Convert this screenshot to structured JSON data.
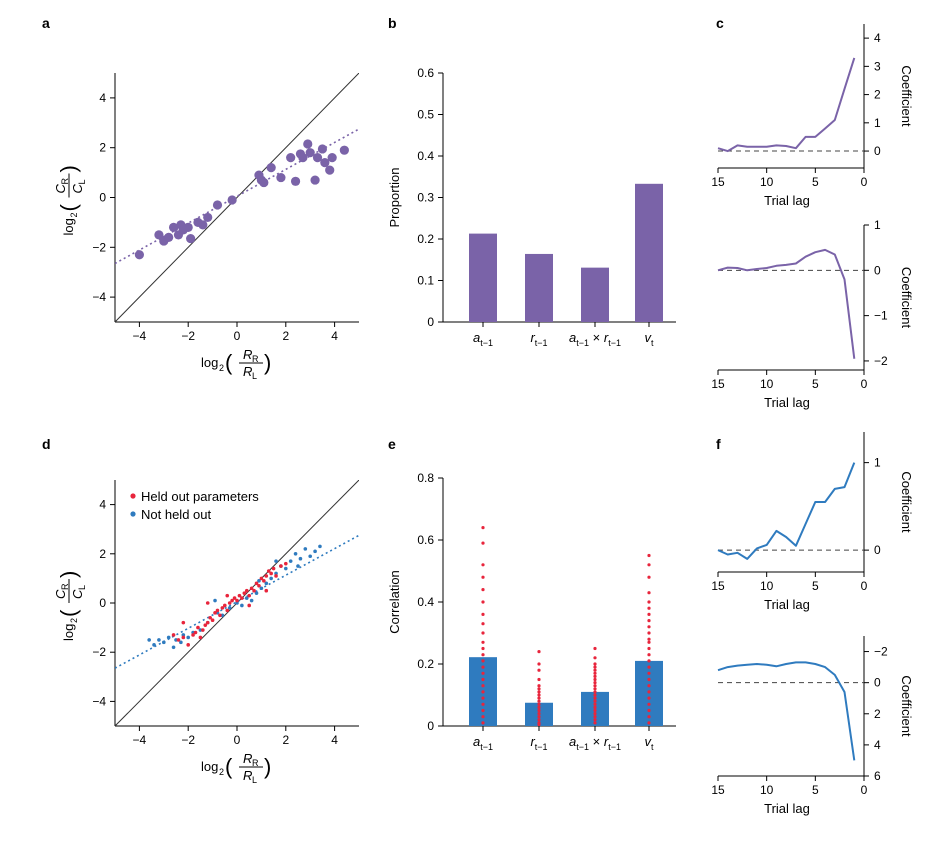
{
  "colors": {
    "purple": "#7a63a8",
    "blue": "#2f7bbf",
    "red": "#e8253c",
    "black": "#000000"
  },
  "panels": {
    "a": {
      "label": "a"
    },
    "b": {
      "label": "b"
    },
    "c": {
      "label": "c"
    },
    "d": {
      "label": "d"
    },
    "e": {
      "label": "e"
    },
    "f": {
      "label": "f"
    }
  },
  "chart_data": [
    {
      "id": "a",
      "type": "scatter",
      "xlabel": "log2(RR/RL)",
      "ylabel": "log2(CR/CL)",
      "xlabel_parts": {
        "pre": "log",
        "sub": "2",
        "num": "R",
        "num_sub": "R",
        "den": "R",
        "den_sub": "L"
      },
      "ylabel_parts": {
        "pre": "log",
        "sub": "2",
        "num": "C",
        "num_sub": "R",
        "den": "C",
        "den_sub": "L"
      },
      "xlim": [
        -5,
        5
      ],
      "ylim": [
        -5,
        5
      ],
      "xticks": [
        -4,
        -2,
        0,
        2,
        4
      ],
      "yticks": [
        -4,
        -2,
        0,
        2,
        4
      ],
      "xtick_labels": [
        "−4",
        "−2",
        "0",
        "2",
        "4"
      ],
      "ytick_labels": [
        "−4",
        "−2",
        "0",
        "2",
        "4"
      ],
      "identity_line": true,
      "fit_line": {
        "slope": 0.54,
        "intercept": 0.05,
        "style": "dotted"
      },
      "points": [
        [
          -4.0,
          -2.3
        ],
        [
          -3.2,
          -1.5
        ],
        [
          -3.0,
          -1.75
        ],
        [
          -2.8,
          -1.6
        ],
        [
          -2.6,
          -1.2
        ],
        [
          -2.4,
          -1.5
        ],
        [
          -2.3,
          -1.1
        ],
        [
          -2.2,
          -1.3
        ],
        [
          -2.0,
          -1.2
        ],
        [
          -1.9,
          -1.65
        ],
        [
          -1.6,
          -1.0
        ],
        [
          -1.4,
          -1.1
        ],
        [
          -1.2,
          -0.8
        ],
        [
          -0.8,
          -0.3
        ],
        [
          -0.2,
          -0.1
        ],
        [
          0.9,
          0.9
        ],
        [
          1.0,
          0.7
        ],
        [
          1.1,
          0.6
        ],
        [
          1.4,
          1.2
        ],
        [
          1.8,
          0.8
        ],
        [
          2.2,
          1.6
        ],
        [
          2.4,
          0.65
        ],
        [
          2.6,
          1.75
        ],
        [
          2.7,
          1.6
        ],
        [
          2.9,
          2.15
        ],
        [
          3.0,
          1.8
        ],
        [
          3.2,
          0.7
        ],
        [
          3.3,
          1.6
        ],
        [
          3.5,
          1.95
        ],
        [
          3.6,
          1.4
        ],
        [
          3.8,
          1.1
        ],
        [
          3.9,
          1.6
        ],
        [
          4.4,
          1.9
        ]
      ]
    },
    {
      "id": "b",
      "type": "bar",
      "ylabel": "Proportion",
      "categories": [
        {
          "base": "a",
          "sub": "t−1"
        },
        {
          "base": "r",
          "sub": "t−1"
        },
        {
          "base": "a",
          "sub": "t−1",
          "mid": " × ",
          "base2": "r",
          "sub2": "t−1"
        },
        {
          "base": "v",
          "sub": "t"
        }
      ],
      "values": [
        0.213,
        0.164,
        0.131,
        0.333
      ],
      "ylim": [
        0,
        0.6
      ],
      "yticks": [
        0,
        0.1,
        0.2,
        0.3,
        0.4,
        0.5,
        0.6
      ],
      "ytick_labels": [
        "0",
        "0.1",
        "0.2",
        "0.3",
        "0.4",
        "0.5",
        "0.6"
      ]
    },
    {
      "id": "c1",
      "type": "line",
      "xlabel": "Trial lag",
      "ylabel": "Coefficient",
      "x": [
        15,
        14,
        13,
        12,
        11,
        10,
        9,
        8,
        7,
        6,
        5,
        4,
        3,
        2,
        1
      ],
      "y": [
        0.1,
        0.0,
        0.2,
        0.15,
        0.15,
        0.15,
        0.2,
        0.18,
        0.1,
        0.5,
        0.5,
        0.8,
        1.1,
        2.2,
        3.3
      ],
      "xlim": [
        15,
        0
      ],
      "ylim": [
        -0.6,
        4.5
      ],
      "xticks": [
        15,
        10,
        5,
        0
      ],
      "yticks": [
        0,
        1,
        2,
        3,
        4
      ],
      "xtick_labels": [
        "15",
        "10",
        "5",
        "0"
      ],
      "ytick_labels": [
        "0",
        "1",
        "2",
        "3",
        "4"
      ],
      "zero_line": true
    },
    {
      "id": "c2",
      "type": "line",
      "xlabel": "Trial lag",
      "ylabel": "Coefficient",
      "x": [
        15,
        14,
        13,
        12,
        11,
        10,
        9,
        8,
        7,
        6,
        5,
        4,
        3,
        2,
        1
      ],
      "y": [
        0.0,
        0.06,
        0.05,
        0.0,
        0.03,
        0.05,
        0.1,
        0.12,
        0.15,
        0.3,
        0.4,
        0.45,
        0.35,
        -0.2,
        -1.95
      ],
      "xlim": [
        15,
        0
      ],
      "ylim": [
        -2.2,
        1.0
      ],
      "xticks": [
        15,
        10,
        5,
        0
      ],
      "yticks": [
        1,
        0,
        -1,
        -2
      ],
      "xtick_labels": [
        "15",
        "10",
        "5",
        "0"
      ],
      "ytick_labels": [
        "1",
        "0",
        "−1",
        "−2"
      ],
      "zero_line": true
    },
    {
      "id": "d",
      "type": "scatter",
      "xlabel": "log2(RR/RL)",
      "ylabel": "log2(CR/CL)",
      "xlabel_parts": {
        "pre": "log",
        "sub": "2",
        "num": "R",
        "num_sub": "R",
        "den": "R",
        "den_sub": "L"
      },
      "ylabel_parts": {
        "pre": "log",
        "sub": "2",
        "num": "C",
        "num_sub": "R",
        "den": "C",
        "den_sub": "L"
      },
      "xlim": [
        -5,
        5
      ],
      "ylim": [
        -5,
        5
      ],
      "xticks": [
        -4,
        -2,
        0,
        2,
        4
      ],
      "yticks": [
        -4,
        -2,
        0,
        2,
        4
      ],
      "xtick_labels": [
        "−4",
        "−2",
        "0",
        "2",
        "4"
      ],
      "ytick_labels": [
        "−4",
        "−2",
        "0",
        "2",
        "4"
      ],
      "identity_line": true,
      "fit_line": {
        "slope": 0.54,
        "intercept": 0.05,
        "style": "dotted"
      },
      "legend": [
        "Held out parameters",
        "Not held out"
      ],
      "series": [
        {
          "name": "Held out parameters",
          "color": "red",
          "points": [
            [
              -2.6,
              -1.3
            ],
            [
              -2.4,
              -1.5
            ],
            [
              -2.2,
              -1.4
            ],
            [
              -2.0,
              -1.7
            ],
            [
              -1.8,
              -1.3
            ],
            [
              -1.7,
              -1.2
            ],
            [
              -1.6,
              -1.0
            ],
            [
              -1.5,
              -1.4
            ],
            [
              -1.4,
              -1.1
            ],
            [
              -1.3,
              -0.9
            ],
            [
              -1.2,
              -0.8
            ],
            [
              -1.1,
              -0.6
            ],
            [
              -1.0,
              -0.7
            ],
            [
              -0.9,
              -0.4
            ],
            [
              -0.8,
              -0.3
            ],
            [
              -0.7,
              -0.5
            ],
            [
              -0.6,
              -0.2
            ],
            [
              -0.5,
              -0.1
            ],
            [
              -0.4,
              -0.3
            ],
            [
              -0.3,
              0.0
            ],
            [
              -0.2,
              0.1
            ],
            [
              -0.1,
              0.2
            ],
            [
              0.0,
              0.1
            ],
            [
              0.1,
              0.3
            ],
            [
              0.2,
              0.2
            ],
            [
              0.3,
              0.4
            ],
            [
              0.4,
              0.5
            ],
            [
              0.5,
              0.3
            ],
            [
              0.6,
              0.6
            ],
            [
              0.7,
              0.5
            ],
            [
              0.8,
              0.8
            ],
            [
              0.9,
              0.7
            ],
            [
              1.0,
              1.0
            ],
            [
              1.1,
              0.9
            ],
            [
              1.2,
              1.1
            ],
            [
              1.3,
              1.3
            ],
            [
              1.4,
              1.2
            ],
            [
              1.5,
              1.4
            ],
            [
              1.6,
              1.1
            ],
            [
              1.8,
              1.5
            ],
            [
              -1.2,
              0.0
            ],
            [
              -0.4,
              0.3
            ],
            [
              0.5,
              -0.1
            ],
            [
              1.2,
              0.5
            ],
            [
              -2.2,
              -0.8
            ],
            [
              2.0,
              1.6
            ]
          ]
        },
        {
          "name": "Not held out",
          "color": "blue",
          "points": [
            [
              -3.6,
              -1.5
            ],
            [
              -3.4,
              -1.7
            ],
            [
              -3.2,
              -1.5
            ],
            [
              -3.0,
              -1.6
            ],
            [
              -2.8,
              -1.4
            ],
            [
              -2.6,
              -1.8
            ],
            [
              -2.5,
              -1.5
            ],
            [
              -2.3,
              -1.6
            ],
            [
              -2.2,
              -1.3
            ],
            [
              -2.0,
              -1.4
            ],
            [
              -1.8,
              -1.2
            ],
            [
              -1.5,
              -1.1
            ],
            [
              -1.2,
              -0.8
            ],
            [
              -0.8,
              -0.4
            ],
            [
              -0.6,
              -0.5
            ],
            [
              -0.3,
              -0.2
            ],
            [
              0.0,
              0.0
            ],
            [
              0.2,
              -0.1
            ],
            [
              0.4,
              0.2
            ],
            [
              0.6,
              0.1
            ],
            [
              0.8,
              0.4
            ],
            [
              1.0,
              0.6
            ],
            [
              1.2,
              0.8
            ],
            [
              1.4,
              1.0
            ],
            [
              1.6,
              1.2
            ],
            [
              1.8,
              1.5
            ],
            [
              2.0,
              1.4
            ],
            [
              2.2,
              1.7
            ],
            [
              2.4,
              2.0
            ],
            [
              2.6,
              1.8
            ],
            [
              2.8,
              2.2
            ],
            [
              3.0,
              1.9
            ],
            [
              3.2,
              2.1
            ],
            [
              3.4,
              2.3
            ],
            [
              2.5,
              1.5
            ],
            [
              1.6,
              1.7
            ],
            [
              -0.9,
              0.1
            ],
            [
              0.9,
              0.9
            ]
          ]
        }
      ]
    },
    {
      "id": "e",
      "type": "bar",
      "ylabel": "Correlation",
      "categories": [
        {
          "base": "a",
          "sub": "t−1"
        },
        {
          "base": "r",
          "sub": "t−1"
        },
        {
          "base": "a",
          "sub": "t−1",
          "mid": " × ",
          "base2": "r",
          "sub2": "t−1"
        },
        {
          "base": "v",
          "sub": "t"
        }
      ],
      "values": [
        0.222,
        0.075,
        0.11,
        0.21
      ],
      "ylim": [
        0,
        0.8
      ],
      "yticks": [
        0,
        0.2,
        0.4,
        0.6,
        0.8
      ],
      "ytick_labels": [
        "0",
        "0.2",
        "0.4",
        "0.6",
        "0.8"
      ],
      "individual_points": [
        [
          0.64,
          0.59,
          0.52,
          0.48,
          0.44,
          0.4,
          0.36,
          0.33,
          0.3,
          0.27,
          0.25,
          0.23,
          0.21,
          0.19,
          0.17,
          0.15,
          0.13,
          0.11,
          0.09,
          0.07,
          0.05,
          0.03,
          0.01
        ],
        [
          0.24,
          0.2,
          0.18,
          0.15,
          0.13,
          0.12,
          0.11,
          0.1,
          0.09,
          0.08,
          0.07,
          0.06,
          0.05,
          0.04,
          0.03,
          0.02,
          0.01,
          0.005
        ],
        [
          0.25,
          0.22,
          0.2,
          0.19,
          0.18,
          0.17,
          0.16,
          0.15,
          0.14,
          0.13,
          0.12,
          0.11,
          0.1,
          0.09,
          0.08,
          0.07,
          0.06,
          0.05,
          0.04,
          0.03,
          0.02,
          0.01
        ],
        [
          0.55,
          0.52,
          0.48,
          0.43,
          0.4,
          0.38,
          0.36,
          0.34,
          0.32,
          0.3,
          0.28,
          0.27,
          0.25,
          0.23,
          0.21,
          0.19,
          0.17,
          0.15,
          0.13,
          0.11,
          0.09,
          0.07,
          0.05,
          0.03,
          0.01
        ]
      ]
    },
    {
      "id": "f1",
      "type": "line",
      "xlabel": "Trial lag",
      "ylabel": "Coefficient",
      "x": [
        15,
        14,
        13,
        12,
        11,
        10,
        9,
        8,
        7,
        6,
        5,
        4,
        3,
        2,
        1
      ],
      "y": [
        0.0,
        -0.05,
        -0.03,
        -0.1,
        0.02,
        0.06,
        0.22,
        0.15,
        0.05,
        0.3,
        0.55,
        0.55,
        0.7,
        0.72,
        1.0
      ],
      "xlim": [
        15,
        0
      ],
      "ylim": [
        -0.25,
        1.35
      ],
      "xticks": [
        15,
        10,
        5,
        0
      ],
      "yticks": [
        0,
        1
      ],
      "xtick_labels": [
        "15",
        "10",
        "5",
        "0"
      ],
      "ytick_labels": [
        "0",
        "1"
      ],
      "zero_line": true
    },
    {
      "id": "f2",
      "type": "line",
      "xlabel": "Trial lag",
      "ylabel": "Coefficient",
      "x": [
        15,
        14,
        13,
        12,
        11,
        10,
        9,
        8,
        7,
        6,
        5,
        4,
        3,
        2,
        1
      ],
      "y": [
        -0.8,
        -1.0,
        -1.1,
        -1.15,
        -1.2,
        -1.15,
        -1.05,
        -1.2,
        -1.3,
        -1.3,
        -1.2,
        -1.0,
        -0.5,
        0.6,
        5.0
      ],
      "xlim": [
        15,
        0
      ],
      "ylim": [
        6,
        -3
      ],
      "xticks": [
        15,
        10,
        5,
        0
      ],
      "yticks": [
        -2,
        0,
        2,
        4,
        6
      ],
      "xtick_labels": [
        "15",
        "10",
        "5",
        "0"
      ],
      "ytick_labels": [
        "−2",
        "0",
        "2",
        "4",
        "6"
      ],
      "zero_line": true
    }
  ]
}
